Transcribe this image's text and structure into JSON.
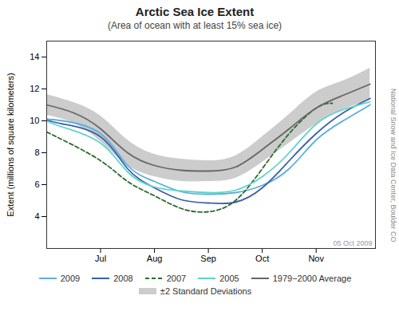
{
  "chart_data": {
    "type": "line",
    "title": "Arctic Sea Ice Extent",
    "subtitle": "(Area of ocean with at least 15% sea ice)",
    "ylabel": "Extent (millions of square kilometers)",
    "xlim": [
      6.0,
      12.1
    ],
    "xticks": [
      {
        "value": 7,
        "label": "Jul"
      },
      {
        "value": 8,
        "label": "Aug"
      },
      {
        "value": 9,
        "label": "Sep"
      },
      {
        "value": 10,
        "label": "Oct"
      },
      {
        "value": 11,
        "label": "Nov"
      }
    ],
    "ylim": [
      2,
      15
    ],
    "yticks": [
      4,
      6,
      8,
      10,
      12,
      14
    ],
    "grid": false,
    "legend": "bottom",
    "band": {
      "name": "±2 Standard Deviations",
      "color": "#cccccc",
      "x": [
        6.0,
        6.5,
        7.0,
        7.5,
        8.0,
        8.5,
        9.0,
        9.5,
        10.0,
        10.5,
        11.0,
        11.5,
        12.0
      ],
      "lower": [
        10.35,
        9.85,
        8.7,
        7.2,
        6.5,
        6.2,
        6.2,
        6.4,
        7.4,
        8.6,
        9.8,
        10.7,
        11.3
      ],
      "upper": [
        11.65,
        11.15,
        10.3,
        8.8,
        7.9,
        7.6,
        7.5,
        7.8,
        9.0,
        10.4,
        11.8,
        12.5,
        13.3
      ]
    },
    "series": [
      {
        "name": "2009",
        "color": "#5aafe0",
        "line_style": "solid",
        "x": [
          6.0,
          6.3,
          7.0,
          7.5,
          8.0,
          8.5,
          9.0,
          9.5,
          10.0,
          10.5,
          11.0,
          11.5,
          12.0
        ],
        "values": [
          10.1,
          10.0,
          9.2,
          7.2,
          6.2,
          5.55,
          5.4,
          5.5,
          5.95,
          7.0,
          8.8,
          10.0,
          11.0
        ]
      },
      {
        "name": "2008",
        "color": "#3b5faa",
        "line_style": "solid",
        "x": [
          6.0,
          6.3,
          7.0,
          7.5,
          8.0,
          8.5,
          9.0,
          9.5,
          10.0,
          10.5,
          11.0,
          11.5,
          12.0
        ],
        "values": [
          10.05,
          9.8,
          9.0,
          7.0,
          5.8,
          5.05,
          4.85,
          4.9,
          5.8,
          7.5,
          9.2,
          10.5,
          11.4
        ]
      },
      {
        "name": "2007",
        "color": "#2d6b2d",
        "line_style": "dashed",
        "x": [
          6.0,
          6.3,
          7.0,
          7.5,
          8.0,
          8.5,
          9.0,
          9.5,
          10.0,
          10.5,
          11.0,
          11.3
        ],
        "values": [
          9.3,
          8.8,
          7.5,
          6.2,
          5.3,
          4.5,
          4.3,
          5.0,
          7.0,
          9.2,
          10.8,
          11.1
        ]
      },
      {
        "name": "2005",
        "color": "#5fd4c8",
        "line_style": "solid",
        "x": [
          6.0,
          6.3,
          7.0,
          7.5,
          8.0,
          8.5,
          9.0,
          9.5,
          10.0,
          10.5,
          11.0,
          11.5,
          12.0
        ],
        "values": [
          10.0,
          9.6,
          8.6,
          6.8,
          5.85,
          5.6,
          5.5,
          5.65,
          6.5,
          8.0,
          9.8,
          10.7,
          11.2
        ]
      },
      {
        "name": "1979−2000 Average",
        "color": "#666666",
        "line_style": "solid",
        "x": [
          6.0,
          6.5,
          7.0,
          7.5,
          8.0,
          8.5,
          9.0,
          9.5,
          10.0,
          10.5,
          11.0,
          11.5,
          12.0
        ],
        "values": [
          11.0,
          10.5,
          9.5,
          8.0,
          7.2,
          6.9,
          6.85,
          7.1,
          8.2,
          9.5,
          10.8,
          11.6,
          12.3
        ]
      }
    ],
    "annotations": [
      "05 Oct 2009",
      "National Snow and Ice Data Center, Boulder CO"
    ]
  }
}
